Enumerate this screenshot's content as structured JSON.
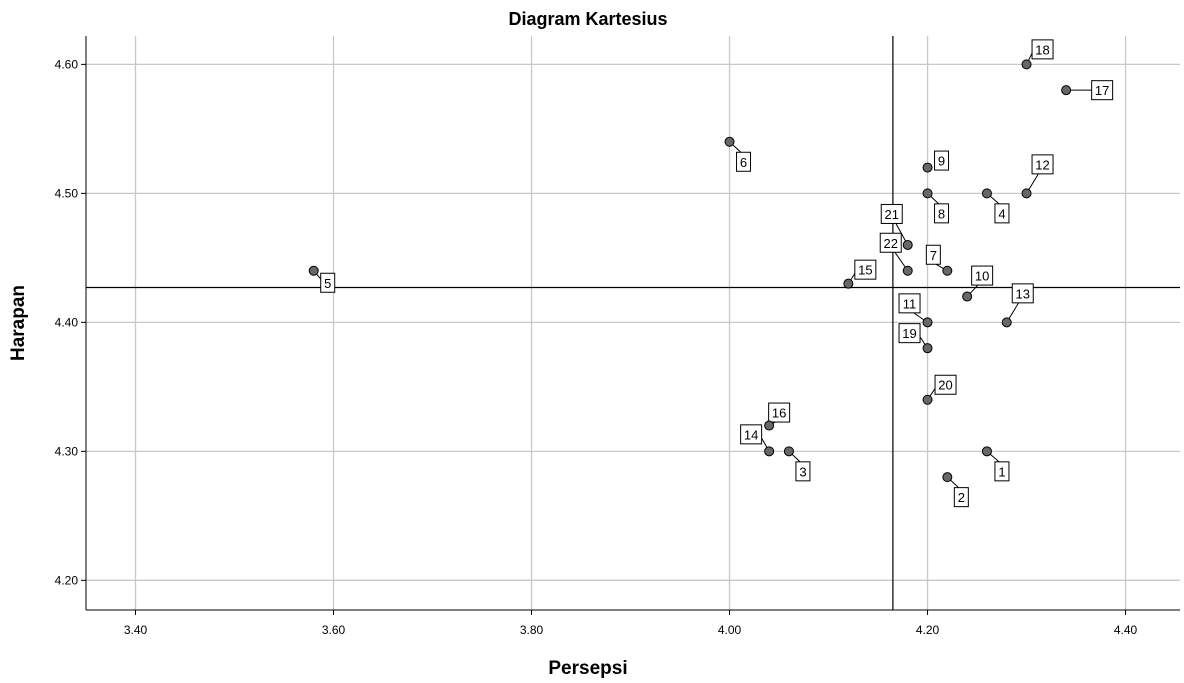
{
  "chart_data": {
    "type": "scatter",
    "title": "Diagram Kartesius",
    "xlabel": "Persepsi",
    "ylabel": "Harapan",
    "xlim": [
      3.35,
      4.455
    ],
    "ylim": [
      4.177,
      4.622
    ],
    "x_ticks": [
      "3.40",
      "3.60",
      "3.80",
      "4.00",
      "4.20",
      "4.40"
    ],
    "y_ticks": [
      "4.20",
      "4.30",
      "4.40",
      "4.50",
      "4.60"
    ],
    "grid": true,
    "reference_lines": {
      "x": 4.165,
      "y": 4.427
    },
    "points": [
      {
        "label": "1",
        "x": 4.26,
        "y": 4.3
      },
      {
        "label": "2",
        "x": 4.22,
        "y": 4.28
      },
      {
        "label": "3",
        "x": 4.06,
        "y": 4.3
      },
      {
        "label": "4",
        "x": 4.26,
        "y": 4.5
      },
      {
        "label": "5",
        "x": 3.58,
        "y": 4.44
      },
      {
        "label": "6",
        "x": 4.0,
        "y": 4.54
      },
      {
        "label": "7",
        "x": 4.22,
        "y": 4.44
      },
      {
        "label": "8",
        "x": 4.2,
        "y": 4.5
      },
      {
        "label": "9",
        "x": 4.2,
        "y": 4.52
      },
      {
        "label": "10",
        "x": 4.24,
        "y": 4.42
      },
      {
        "label": "11",
        "x": 4.2,
        "y": 4.4
      },
      {
        "label": "12",
        "x": 4.3,
        "y": 4.5
      },
      {
        "label": "13",
        "x": 4.28,
        "y": 4.4
      },
      {
        "label": "14",
        "x": 4.04,
        "y": 4.3
      },
      {
        "label": "15",
        "x": 4.12,
        "y": 4.43
      },
      {
        "label": "16",
        "x": 4.04,
        "y": 4.32
      },
      {
        "label": "17",
        "x": 4.34,
        "y": 4.58
      },
      {
        "label": "18",
        "x": 4.3,
        "y": 4.6
      },
      {
        "label": "19",
        "x": 4.2,
        "y": 4.38
      },
      {
        "label": "20",
        "x": 4.2,
        "y": 4.34
      },
      {
        "label": "21",
        "x": 4.18,
        "y": 4.46
      },
      {
        "label": "22",
        "x": 4.18,
        "y": 4.44
      }
    ]
  }
}
